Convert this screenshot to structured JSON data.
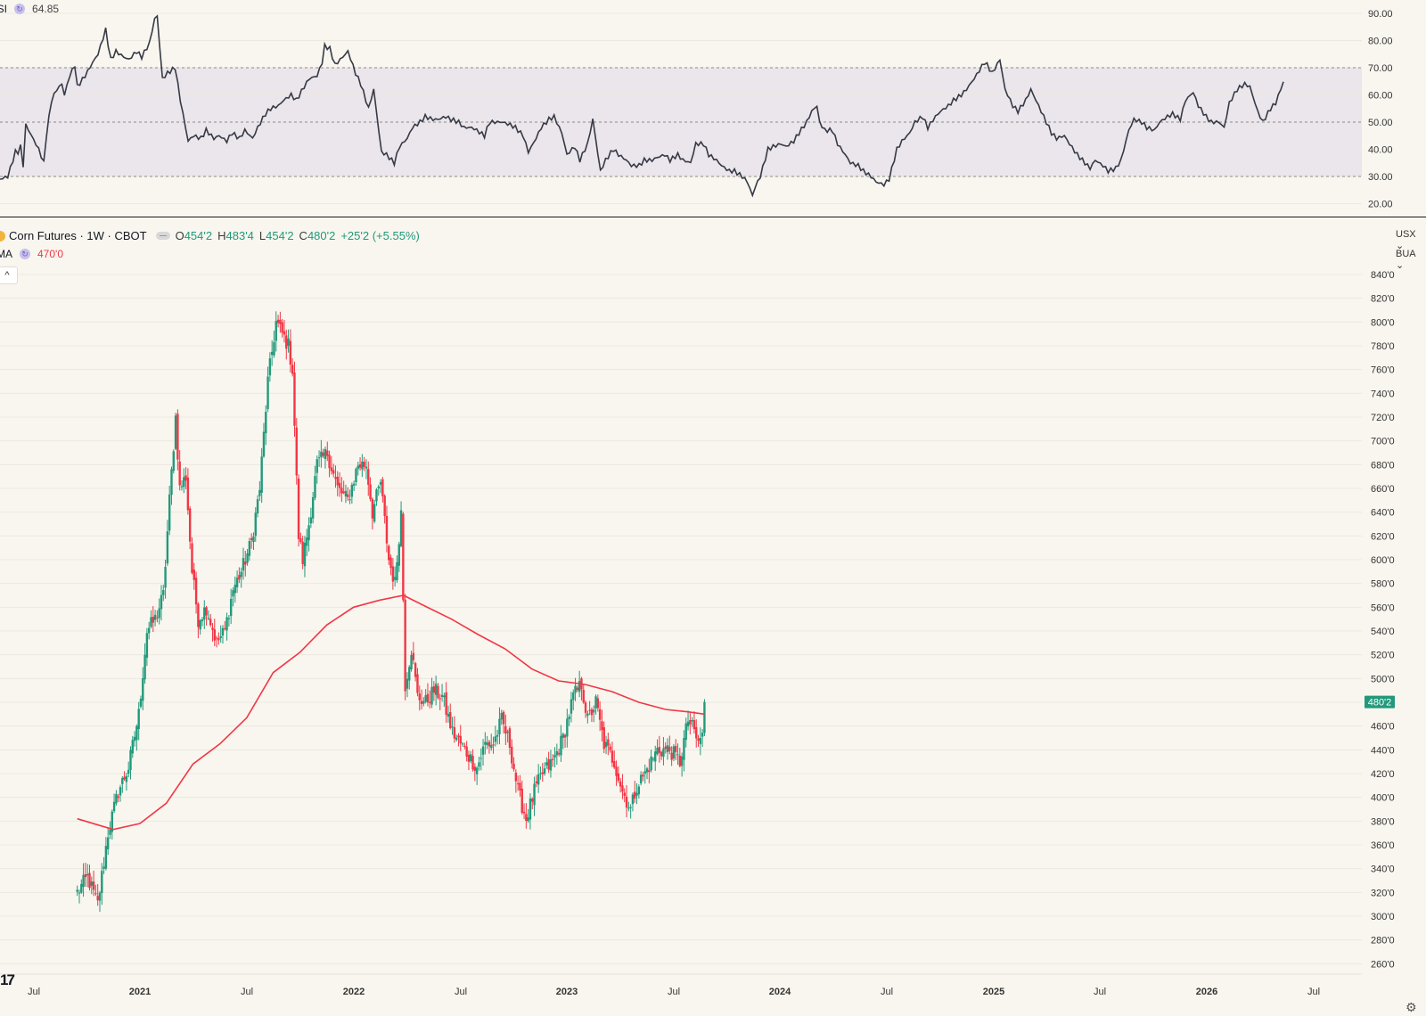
{
  "rsi_panel": {
    "label": "RSI",
    "value": "64.85",
    "axis_ticks": [
      "90.00",
      "80.00",
      "70.00",
      "60.00",
      "50.00",
      "40.00",
      "30.00",
      "20.00"
    ]
  },
  "price_panel": {
    "symbol": "Corn Futures · 1W · CBOT",
    "ohlc": {
      "o_label": "O",
      "o_value": "454'2",
      "h_label": "H",
      "h_value": "483'4",
      "l_label": "L",
      "l_value": "454'2",
      "c_label": "C",
      "c_value": "480'2",
      "change": "+25'2 (+5.55%)"
    },
    "ma_label": "MA",
    "ma_value": "470'0",
    "collapse_icon": "chevron-up-icon",
    "unit_selector": "USX",
    "unit_selector_2": "BUA",
    "last_price_label": "480'2",
    "axis_ticks": [
      "840'0",
      "820'0",
      "800'0",
      "780'0",
      "760'0",
      "740'0",
      "720'0",
      "700'0",
      "680'0",
      "660'0",
      "640'0",
      "620'0",
      "600'0",
      "580'0",
      "560'0",
      "540'0",
      "520'0",
      "500'0",
      "480'0",
      "460'0",
      "440'0",
      "420'0",
      "400'0",
      "380'0",
      "360'0",
      "340'0",
      "320'0",
      "300'0",
      "280'0",
      "260'0"
    ],
    "time_labels": [
      "Jul",
      "2021",
      "Jul",
      "2022",
      "Jul",
      "2023",
      "Jul",
      "2024",
      "Jul",
      "2025",
      "Jul",
      "2026",
      "Jul"
    ],
    "logo": "17"
  },
  "colors": {
    "up": "#22997b",
    "down": "#f23645",
    "ma": "#f23645",
    "rsi_line": "#363a45",
    "rsi_band": "#ebe5ec",
    "bg": "#f8f6ef"
  },
  "chart_data": [
    {
      "type": "line",
      "name": "RSI",
      "ylim": [
        20,
        90
      ],
      "band": [
        30,
        70
      ],
      "midline": 50,
      "anchors": [
        [
          0,
          29
        ],
        [
          6,
          30
        ],
        [
          12,
          39
        ],
        [
          14,
          39
        ],
        [
          16,
          41
        ],
        [
          18,
          34
        ],
        [
          20,
          49
        ],
        [
          30,
          40
        ],
        [
          34,
          35
        ],
        [
          36,
          45
        ],
        [
          40,
          58
        ],
        [
          44,
          62
        ],
        [
          48,
          64
        ],
        [
          50,
          60
        ],
        [
          54,
          67
        ],
        [
          58,
          71
        ],
        [
          60,
          63
        ],
        [
          66,
          67
        ],
        [
          72,
          72
        ],
        [
          76,
          75
        ],
        [
          80,
          81
        ],
        [
          82,
          84
        ],
        [
          86,
          73
        ],
        [
          90,
          76
        ],
        [
          96,
          74
        ],
        [
          100,
          73
        ],
        [
          106,
          76
        ],
        [
          110,
          74
        ],
        [
          116,
          79
        ],
        [
          120,
          88
        ],
        [
          122,
          89
        ],
        [
          126,
          66
        ],
        [
          130,
          68
        ],
        [
          136,
          70
        ],
        [
          140,
          58
        ],
        [
          146,
          43
        ],
        [
          150,
          45
        ],
        [
          156,
          44
        ],
        [
          160,
          47
        ],
        [
          166,
          44
        ],
        [
          170,
          45
        ],
        [
          176,
          43
        ],
        [
          180,
          46
        ],
        [
          186,
          44
        ],
        [
          190,
          47
        ],
        [
          196,
          44
        ],
        [
          200,
          48
        ],
        [
          206,
          53
        ],
        [
          210,
          55
        ],
        [
          216,
          56
        ],
        [
          220,
          58
        ],
        [
          226,
          60
        ],
        [
          230,
          58
        ],
        [
          236,
          63
        ],
        [
          240,
          66
        ],
        [
          246,
          67
        ],
        [
          250,
          72
        ],
        [
          252,
          78
        ],
        [
          256,
          77
        ],
        [
          260,
          71
        ],
        [
          266,
          74
        ],
        [
          270,
          76
        ],
        [
          276,
          68
        ],
        [
          280,
          64
        ],
        [
          286,
          55
        ],
        [
          290,
          62
        ],
        [
          296,
          39
        ],
        [
          300,
          38
        ],
        [
          306,
          35
        ],
        [
          310,
          41
        ],
        [
          316,
          44
        ],
        [
          320,
          48
        ],
        [
          326,
          50
        ],
        [
          330,
          52
        ],
        [
          336,
          51
        ],
        [
          340,
          51
        ],
        [
          346,
          52
        ],
        [
          350,
          51
        ],
        [
          356,
          50
        ],
        [
          360,
          48
        ],
        [
          366,
          48
        ],
        [
          370,
          47
        ],
        [
          376,
          45
        ],
        [
          380,
          50
        ],
        [
          386,
          50
        ],
        [
          390,
          50
        ],
        [
          396,
          49
        ],
        [
          400,
          48
        ],
        [
          406,
          45
        ],
        [
          410,
          39
        ],
        [
          416,
          44
        ],
        [
          420,
          48
        ],
        [
          426,
          51
        ],
        [
          430,
          52
        ],
        [
          436,
          46
        ],
        [
          440,
          38
        ],
        [
          446,
          41
        ],
        [
          450,
          36
        ],
        [
          456,
          42
        ],
        [
          460,
          51
        ],
        [
          466,
          32
        ],
        [
          470,
          36
        ],
        [
          476,
          40
        ],
        [
          480,
          38
        ],
        [
          486,
          36
        ],
        [
          490,
          34
        ],
        [
          496,
          34
        ],
        [
          500,
          36
        ],
        [
          506,
          36
        ],
        [
          510,
          37
        ],
        [
          516,
          38
        ],
        [
          520,
          36
        ],
        [
          526,
          38
        ],
        [
          530,
          36
        ],
        [
          536,
          35
        ],
        [
          540,
          42
        ],
        [
          546,
          42
        ],
        [
          550,
          38
        ],
        [
          556,
          36
        ],
        [
          560,
          34
        ],
        [
          566,
          32
        ],
        [
          570,
          32
        ],
        [
          576,
          30
        ],
        [
          580,
          28
        ],
        [
          584,
          23
        ],
        [
          586,
          26
        ],
        [
          590,
          30
        ],
        [
          596,
          40
        ],
        [
          600,
          41
        ],
        [
          606,
          42
        ],
        [
          610,
          41
        ],
        [
          616,
          43
        ],
        [
          620,
          46
        ],
        [
          626,
          50
        ],
        [
          630,
          54
        ],
        [
          634,
          56
        ],
        [
          636,
          50
        ],
        [
          640,
          47
        ],
        [
          646,
          47
        ],
        [
          650,
          42
        ],
        [
          656,
          38
        ],
        [
          660,
          35
        ],
        [
          666,
          34
        ],
        [
          670,
          32
        ],
        [
          676,
          30
        ],
        [
          680,
          28
        ],
        [
          686,
          27
        ],
        [
          690,
          29
        ],
        [
          696,
          40
        ],
        [
          700,
          43
        ],
        [
          706,
          46
        ],
        [
          710,
          50
        ],
        [
          716,
          52
        ],
        [
          720,
          48
        ],
        [
          726,
          52
        ],
        [
          730,
          54
        ],
        [
          736,
          56
        ],
        [
          740,
          58
        ],
        [
          746,
          60
        ],
        [
          750,
          62
        ],
        [
          756,
          66
        ],
        [
          760,
          69
        ],
        [
          764,
          72
        ],
        [
          766,
          71
        ],
        [
          770,
          68
        ],
        [
          776,
          73
        ],
        [
          780,
          62
        ],
        [
          784,
          58
        ],
        [
          786,
          56
        ],
        [
          790,
          54
        ],
        [
          796,
          58
        ],
        [
          800,
          62
        ],
        [
          806,
          56
        ],
        [
          810,
          52
        ],
        [
          816,
          46
        ],
        [
          820,
          44
        ],
        [
          826,
          45
        ],
        [
          830,
          42
        ],
        [
          836,
          38
        ],
        [
          840,
          36
        ],
        [
          846,
          33
        ],
        [
          850,
          36
        ],
        [
          856,
          34
        ],
        [
          860,
          32
        ],
        [
          866,
          33
        ],
        [
          870,
          36
        ],
        [
          876,
          47
        ],
        [
          880,
          51
        ],
        [
          886,
          50
        ],
        [
          890,
          48
        ],
        [
          896,
          47
        ],
        [
          900,
          50
        ],
        [
          906,
          52
        ],
        [
          910,
          53
        ],
        [
          916,
          51
        ],
        [
          920,
          58
        ],
        [
          926,
          61
        ],
        [
          930,
          56
        ],
        [
          936,
          52
        ],
        [
          940,
          50
        ],
        [
          946,
          50
        ],
        [
          950,
          48
        ],
        [
          954,
          57
        ],
        [
          960,
          62
        ],
        [
          966,
          64
        ],
        [
          970,
          63
        ],
        [
          974,
          57
        ],
        [
          976,
          54
        ],
        [
          980,
          50
        ],
        [
          986,
          55
        ],
        [
          990,
          57
        ],
        [
          996,
          64.85
        ]
      ]
    },
    {
      "type": "candlestick",
      "name": "Corn Futures · 1W · CBOT",
      "ylim": [
        250,
        855
      ],
      "x_range": [
        "2020-06",
        "2026-08"
      ],
      "anchors": [
        [
          "2020-06-01",
          320
        ],
        [
          "2020-07-06",
          333
        ],
        [
          "2020-08-10",
          310
        ],
        [
          "2020-09-14",
          370
        ],
        [
          "2020-10-19",
          405
        ],
        [
          "2020-11-23",
          425
        ],
        [
          "2020-12-28",
          470
        ],
        [
          "2021-01-25",
          540
        ],
        [
          "2021-02-22",
          550
        ],
        [
          "2021-03-22",
          570
        ],
        [
          "2021-04-12",
          650
        ],
        [
          "2021-05-03",
          720
        ],
        [
          "2021-05-17",
          660
        ],
        [
          "2021-06-07",
          670
        ],
        [
          "2021-06-28",
          590
        ],
        [
          "2021-07-19",
          550
        ],
        [
          "2021-08-16",
          560
        ],
        [
          "2021-09-20",
          530
        ],
        [
          "2021-10-18",
          540
        ],
        [
          "2021-11-15",
          575
        ],
        [
          "2021-12-13",
          590
        ],
        [
          "2022-01-17",
          615
        ],
        [
          "2022-02-14",
          660
        ],
        [
          "2022-03-14",
          750
        ],
        [
          "2022-04-11",
          800
        ],
        [
          "2022-05-02",
          790
        ],
        [
          "2022-05-23",
          780
        ],
        [
          "2022-06-06",
          760
        ],
        [
          "2022-06-27",
          620
        ],
        [
          "2022-07-11",
          600
        ],
        [
          "2022-08-01",
          630
        ],
        [
          "2022-08-29",
          680
        ],
        [
          "2022-10-03",
          690
        ],
        [
          "2022-11-07",
          660
        ],
        [
          "2022-12-12",
          650
        ],
        [
          "2023-01-16",
          680
        ],
        [
          "2023-02-13",
          680
        ],
        [
          "2023-03-06",
          640
        ],
        [
          "2023-04-03",
          665
        ],
        [
          "2023-05-01",
          600
        ],
        [
          "2023-05-22",
          580
        ],
        [
          "2023-06-12",
          640
        ],
        [
          "2023-06-26",
          495
        ],
        [
          "2023-07-17",
          525
        ],
        [
          "2023-08-07",
          485
        ],
        [
          "2023-09-04",
          480
        ],
        [
          "2023-10-02",
          490
        ],
        [
          "2023-10-30",
          485
        ],
        [
          "2023-12-04",
          455
        ],
        [
          "2024-01-15",
          440
        ],
        [
          "2024-02-26",
          425
        ],
        [
          "2024-03-25",
          445
        ],
        [
          "2024-04-22",
          445
        ],
        [
          "2024-05-20",
          465
        ],
        [
          "2024-06-17",
          445
        ],
        [
          "2024-07-15",
          405
        ],
        [
          "2024-08-12",
          382
        ],
        [
          "2024-09-09",
          405
        ],
        [
          "2024-10-07",
          420
        ],
        [
          "2024-11-11",
          430
        ],
        [
          "2024-12-16",
          450
        ],
        [
          "2025-01-20",
          485
        ],
        [
          "2025-02-17",
          495
        ],
        [
          "2025-03-10",
          465
        ],
        [
          "2025-04-07",
          480
        ],
        [
          "2025-05-05",
          445
        ],
        [
          "2025-06-09",
          430
        ],
        [
          "2025-07-07",
          405
        ],
        [
          "2025-08-04",
          390
        ],
        [
          "2025-08-25",
          410
        ],
        [
          "2025-09-22",
          420
        ],
        [
          "2025-11-03",
          440
        ],
        [
          "2025-12-15",
          440
        ],
        [
          "2026-01-19",
          430
        ],
        [
          "2026-02-16",
          465
        ],
        [
          "2026-03-09",
          455
        ],
        [
          "2026-03-23",
          445
        ],
        [
          "2026-04-06",
          454.25
        ],
        [
          "2026-04-13",
          480.25
        ]
      ]
    },
    {
      "type": "line",
      "name": "MA",
      "ylim": [
        250,
        855
      ],
      "anchors": [
        [
          "2020-06-01",
          382
        ],
        [
          "2020-10-01",
          373
        ],
        [
          "2021-01-01",
          378
        ],
        [
          "2021-04-01",
          395
        ],
        [
          "2021-07-01",
          428
        ],
        [
          "2021-10-01",
          445
        ],
        [
          "2022-01-01",
          467
        ],
        [
          "2022-04-01",
          505
        ],
        [
          "2022-07-01",
          522
        ],
        [
          "2022-10-01",
          545
        ],
        [
          "2023-01-01",
          560
        ],
        [
          "2023-04-01",
          566
        ],
        [
          "2023-06-20",
          570
        ],
        [
          "2023-09-01",
          561
        ],
        [
          "2023-12-01",
          550
        ],
        [
          "2024-03-01",
          537
        ],
        [
          "2024-06-01",
          525
        ],
        [
          "2024-09-01",
          508
        ],
        [
          "2024-12-01",
          498
        ],
        [
          "2025-03-01",
          495
        ],
        [
          "2025-06-01",
          489
        ],
        [
          "2025-09-01",
          480
        ],
        [
          "2025-12-01",
          474
        ],
        [
          "2026-02-15",
          472
        ],
        [
          "2026-04-13",
          470
        ]
      ]
    }
  ]
}
